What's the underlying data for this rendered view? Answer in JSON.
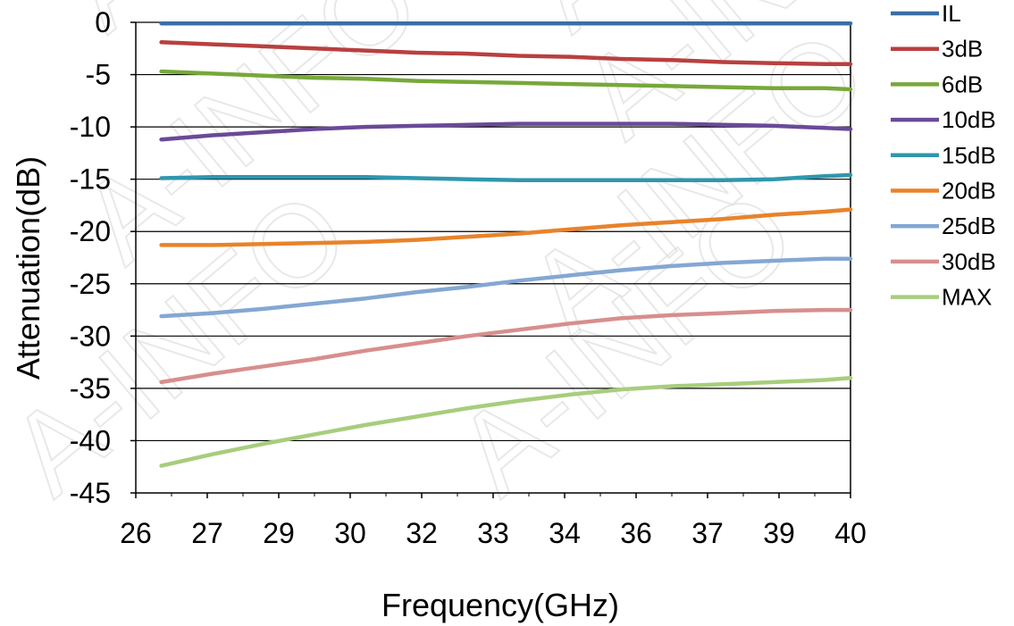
{
  "chart_data": {
    "type": "line",
    "xlabel": "Frequency(GHz)",
    "ylabel": "Attenuation(dB)",
    "x_tick_labels": [
      "26",
      "27",
      "29",
      "30",
      "32",
      "33",
      "34",
      "36",
      "37",
      "39",
      "40"
    ],
    "y_ticks": [
      0,
      -5,
      -10,
      -15,
      -20,
      -25,
      -30,
      -35,
      -40,
      -45
    ],
    "y_tick_labels": [
      "0",
      "-5",
      "-10",
      "-15",
      "-20",
      "-25",
      "-30",
      "-35",
      "-40",
      "-45"
    ],
    "xlim": [
      26,
      40
    ],
    "ylim": [
      -45,
      0
    ],
    "grid": "horizontal",
    "legend_position": "right",
    "x": [
      26.5,
      27.5,
      28.5,
      29.5,
      30.5,
      31.5,
      32.5,
      33.5,
      34.5,
      35.5,
      36.5,
      37.5,
      38.5,
      39.5,
      40.0
    ],
    "series": [
      {
        "name": "IL",
        "color": "#3a6ea5",
        "values": [
          -0.1,
          -0.1,
          -0.1,
          -0.1,
          -0.1,
          -0.1,
          -0.1,
          -0.1,
          -0.1,
          -0.1,
          -0.1,
          -0.1,
          -0.1,
          -0.1,
          -0.1
        ]
      },
      {
        "name": "3dB",
        "color": "#b84040",
        "values": [
          -1.9,
          -2.1,
          -2.3,
          -2.5,
          -2.7,
          -2.9,
          -3.0,
          -3.2,
          -3.3,
          -3.5,
          -3.6,
          -3.8,
          -3.9,
          -4.0,
          -4.0
        ]
      },
      {
        "name": "6dB",
        "color": "#77a83a",
        "values": [
          -4.7,
          -4.9,
          -5.1,
          -5.3,
          -5.4,
          -5.6,
          -5.7,
          -5.8,
          -5.9,
          -6.0,
          -6.1,
          -6.2,
          -6.3,
          -6.3,
          -6.4
        ]
      },
      {
        "name": "10dB",
        "color": "#6a4a97",
        "values": [
          -11.2,
          -10.8,
          -10.5,
          -10.2,
          -10.0,
          -9.9,
          -9.8,
          -9.7,
          -9.7,
          -9.7,
          -9.7,
          -9.8,
          -9.9,
          -10.1,
          -10.2
        ]
      },
      {
        "name": "15dB",
        "color": "#2f97ad",
        "values": [
          -14.9,
          -14.8,
          -14.8,
          -14.8,
          -14.8,
          -14.9,
          -15.0,
          -15.1,
          -15.1,
          -15.1,
          -15.1,
          -15.1,
          -15.0,
          -14.7,
          -14.6
        ]
      },
      {
        "name": "20dB",
        "color": "#e8832a",
        "values": [
          -21.3,
          -21.3,
          -21.2,
          -21.1,
          -21.0,
          -20.8,
          -20.5,
          -20.2,
          -19.8,
          -19.4,
          -19.1,
          -18.8,
          -18.4,
          -18.1,
          -17.9
        ]
      },
      {
        "name": "25dB",
        "color": "#84a7d3",
        "values": [
          -28.1,
          -27.8,
          -27.4,
          -26.9,
          -26.4,
          -25.8,
          -25.3,
          -24.7,
          -24.2,
          -23.7,
          -23.3,
          -23.0,
          -22.8,
          -22.6,
          -22.6
        ]
      },
      {
        "name": "30dB",
        "color": "#d88e8e",
        "values": [
          -34.4,
          -33.6,
          -32.9,
          -32.2,
          -31.4,
          -30.7,
          -30.0,
          -29.4,
          -28.8,
          -28.3,
          -28.0,
          -27.8,
          -27.6,
          -27.5,
          -27.5
        ]
      },
      {
        "name": "MAX",
        "color": "#a8cd7c",
        "values": [
          -42.4,
          -41.3,
          -40.3,
          -39.4,
          -38.5,
          -37.7,
          -36.9,
          -36.2,
          -35.6,
          -35.1,
          -34.8,
          -34.6,
          -34.4,
          -34.2,
          -34.0
        ]
      }
    ]
  },
  "watermark": "A-INFO"
}
